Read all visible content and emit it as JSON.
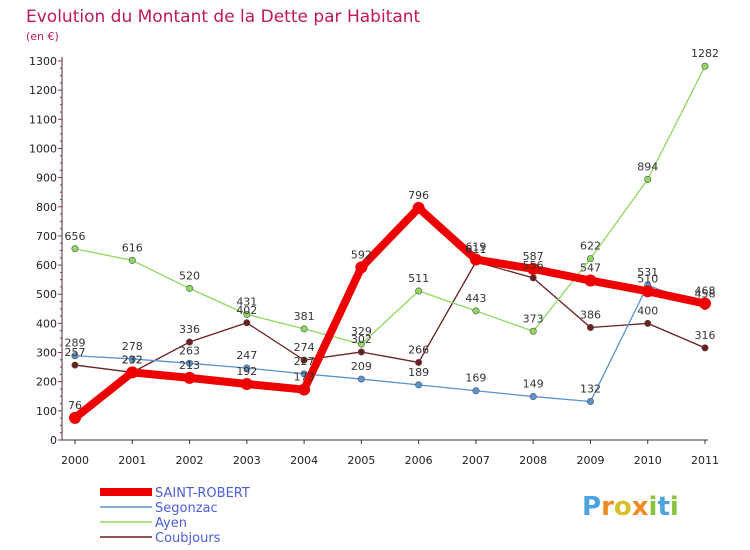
{
  "chart_data": {
    "type": "line",
    "title": "Evolution du Montant de la Dette par Habitant",
    "subtitle": "(en €)",
    "xlabel": "",
    "ylabel": "",
    "categories": [
      "2000",
      "2001",
      "2002",
      "2003",
      "2004",
      "2005",
      "2006",
      "2007",
      "2008",
      "2009",
      "2010",
      "2011"
    ],
    "ylim": [
      0,
      1300
    ],
    "yticks": [
      0,
      100,
      200,
      300,
      400,
      500,
      600,
      700,
      800,
      900,
      1000,
      1100,
      1200,
      1300
    ],
    "grid": false,
    "legend_position": "bottom-left",
    "series": [
      {
        "name": "SAINT-ROBERT",
        "color": "#ee0000",
        "values": [
          76,
          232,
          213,
          192,
          173,
          592,
          796,
          619,
          587,
          547,
          510,
          468
        ]
      },
      {
        "name": "Segonzac",
        "color": "#5b93d0",
        "values": [
          289,
          278,
          263,
          247,
          227,
          209,
          189,
          169,
          149,
          132,
          531,
          458
        ]
      },
      {
        "name": "Ayen",
        "color": "#8ed860",
        "values": [
          656,
          616,
          520,
          431,
          381,
          329,
          511,
          443,
          373,
          622,
          894,
          1282
        ]
      },
      {
        "name": "Coubjours",
        "color": "#6b1f1f",
        "values": [
          257,
          232,
          336,
          402,
          274,
          302,
          266,
          611,
          556,
          386,
          400,
          316
        ]
      }
    ]
  },
  "brand": {
    "text": "Proxiti"
  }
}
